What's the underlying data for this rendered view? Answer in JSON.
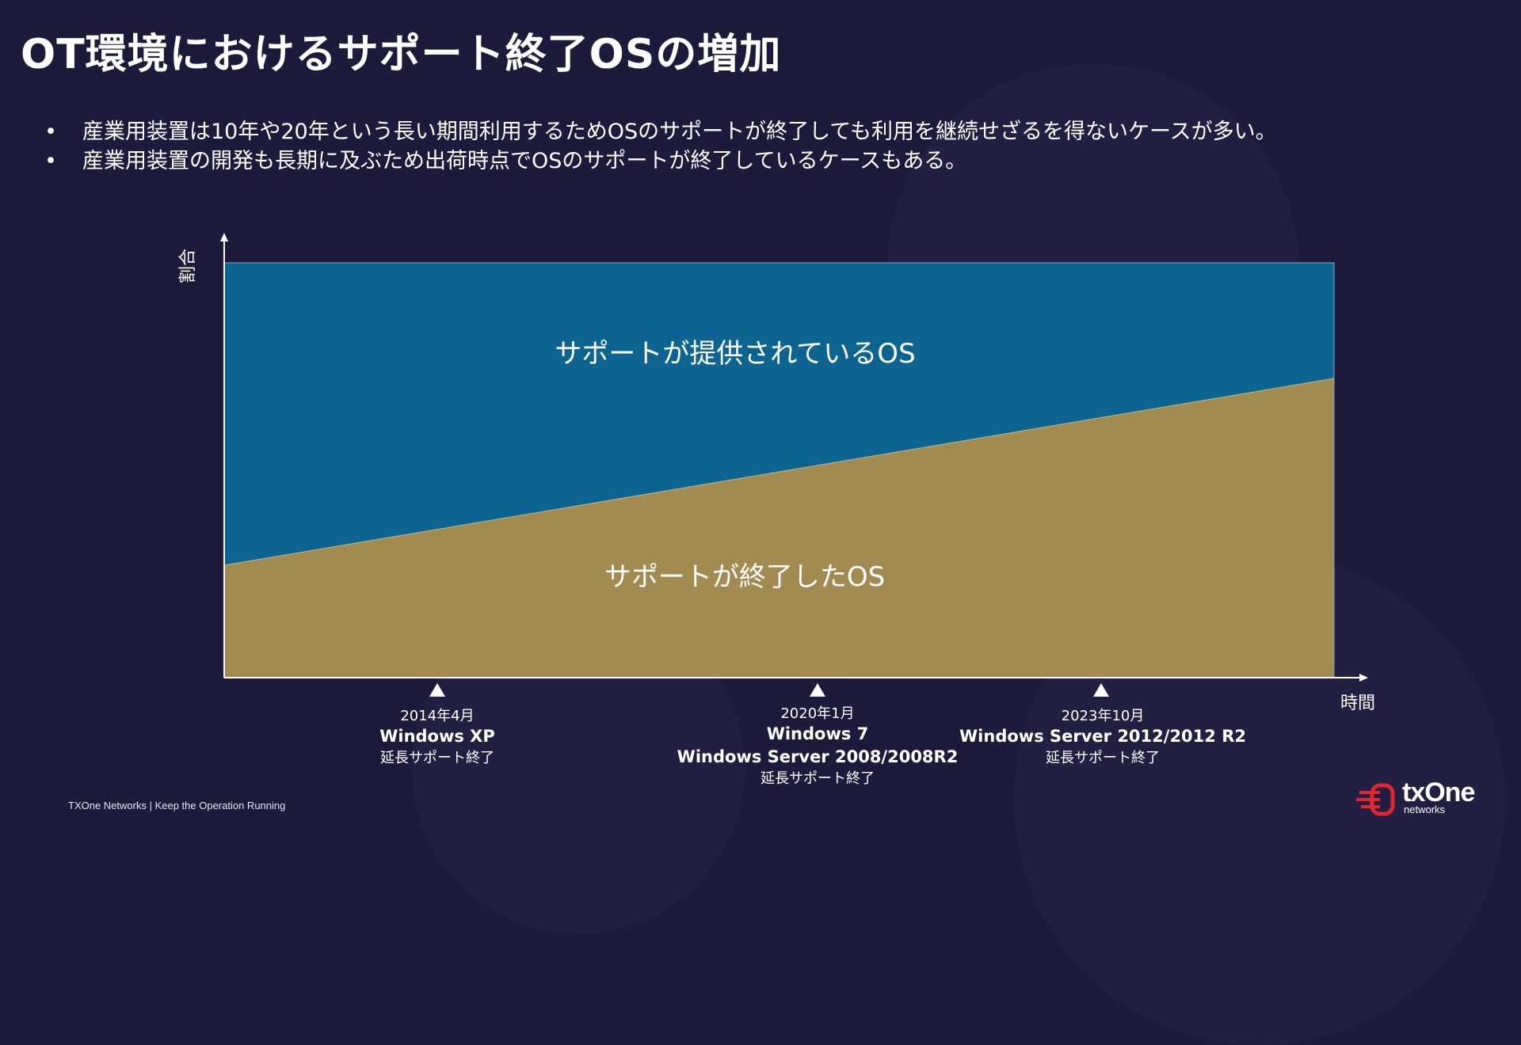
{
  "title": "OT環境におけるサポート終了OSの増加",
  "bullets": [
    "産業用装置は10年や20年という長い期間利用するためOSのサポートが終了しても利用を継続せざるを得ないケースが多い。",
    "産業用装置の開発も長期に及ぶため出荷時点でOSのサポートが終了しているケースもある。"
  ],
  "bullet_marker": "•",
  "chart": {
    "y_axis_label": "割合",
    "x_axis_label": "時間",
    "upper_area_label": "サポートが提供されているOS",
    "lower_area_label": "サポートが終了したOS",
    "milestones": [
      {
        "date": "2014年4月",
        "os": [
          "Windows XP"
        ],
        "note": "延長サポート終了"
      },
      {
        "date": "2020年1月",
        "os": [
          "Windows 7",
          "Windows Server 2008/2008R2"
        ],
        "note": "延長サポート終了"
      },
      {
        "date": "2023年10月",
        "os": [
          "Windows Server 2012/2012 R2"
        ],
        "note": "延長サポート終了"
      }
    ]
  },
  "colors": {
    "background": "#1d1a3b",
    "supported_area": "#0e6490",
    "unsupported_area": "#a18b50",
    "logo_red": "#e3262c"
  },
  "footer": {
    "text": "TXOne Networks | Keep the Operation Running",
    "logo_word": "txOne",
    "logo_sub": "networks",
    "logo_icon": "txone-logo-icon"
  }
}
